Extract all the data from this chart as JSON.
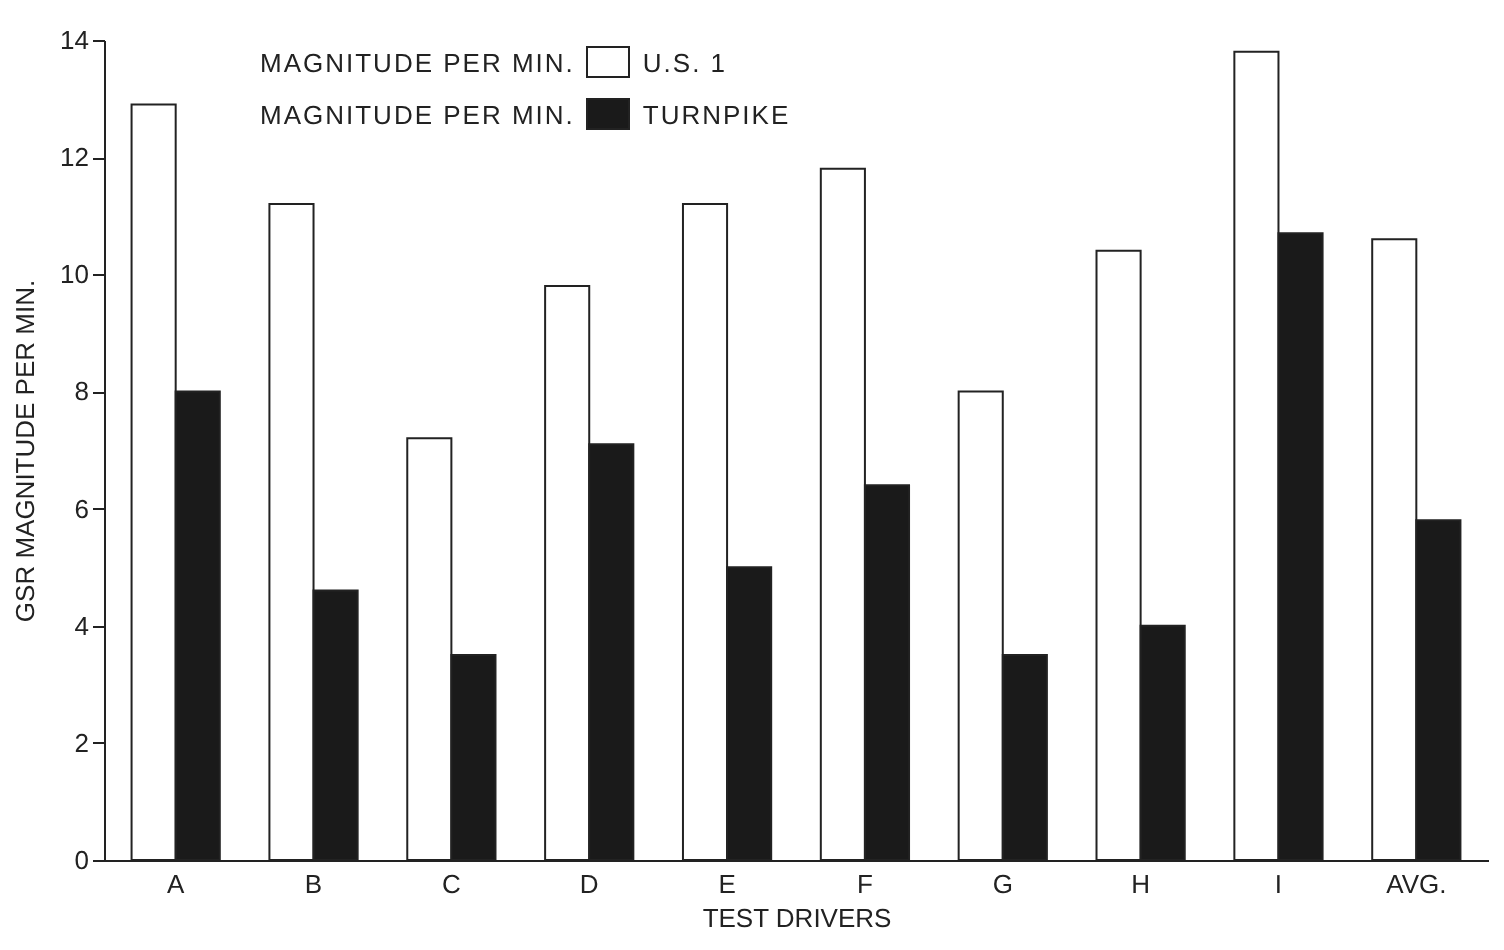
{
  "chart_data": {
    "type": "bar",
    "xlabel": "TEST DRIVERS",
    "ylabel": "GSR MAGNITUDE PER MIN.",
    "legend_title": "MAGNITUDE PER MIN.",
    "categories": [
      "A",
      "B",
      "C",
      "D",
      "E",
      "F",
      "G",
      "H",
      "I",
      "AVG."
    ],
    "series": [
      {
        "name": "U.S. 1",
        "color": "#ffffff",
        "values": [
          12.9,
          11.2,
          7.2,
          9.8,
          11.2,
          11.8,
          8.0,
          10.4,
          13.8,
          10.6
        ]
      },
      {
        "name": "TURNPIKE",
        "color": "#1a1a1a",
        "values": [
          8.0,
          4.6,
          3.5,
          7.1,
          5.0,
          6.4,
          3.5,
          4.0,
          10.7,
          5.8
        ]
      }
    ],
    "ylim": [
      0,
      14
    ],
    "yticks": [
      0,
      2,
      4,
      6,
      8,
      10,
      12,
      14
    ],
    "grid": false,
    "legend": "top left"
  }
}
